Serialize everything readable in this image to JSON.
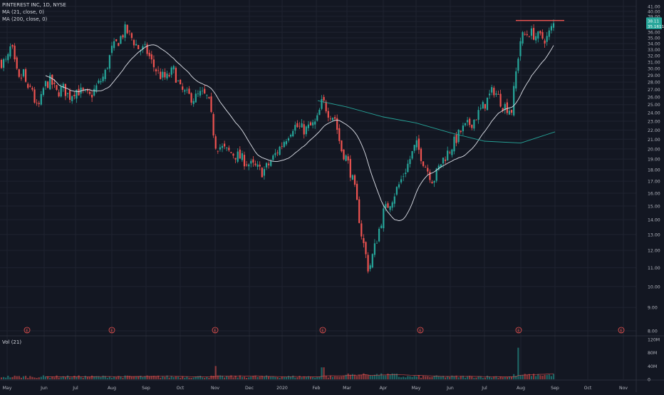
{
  "legend": {
    "title": "PINTEREST INC, 1D, NYSE",
    "ma1": "MA (21, close, 0)",
    "ma2": "MA (200, close, 0)"
  },
  "volume_pane": {
    "label": "Vol (21)"
  },
  "last_price_badges": [
    "38.11",
    "35.16116"
  ],
  "earnings_marker_label": "E",
  "colors": {
    "background": "#131722",
    "grid": "#1f2330",
    "up": "#26a69a",
    "down": "#ef5350",
    "ma21": "#e0e3eb",
    "ma200": "#26a69a",
    "resistance": "#ef5350",
    "axis_text": "#b2b5be"
  },
  "chart_data": [
    {
      "type": "candlestick",
      "title": "PINTEREST INC, 1D, NYSE",
      "x_tick_labels": [
        "May",
        "Jun",
        "Jul",
        "Aug",
        "Sep",
        "Oct",
        "Nov",
        "Dec",
        "2020",
        "Feb",
        "Mar",
        "Apr",
        "May",
        "Jun",
        "Jul",
        "Aug",
        "Sep",
        "Oct",
        "Nov"
      ],
      "y_tick_labels": [
        "41.00",
        "40.00",
        "39.00",
        "38.00",
        "37.00",
        "36.00",
        "35.00",
        "34.00",
        "33.00",
        "32.00",
        "31.00",
        "30.00",
        "29.00",
        "28.00",
        "27.00",
        "26.00",
        "25.00",
        "24.00",
        "23.00",
        "22.00",
        "21.00",
        "20.00",
        "19.00",
        "18.00",
        "17.00",
        "16.00",
        "15.00",
        "14.00",
        "13.00",
        "12.00",
        "11.00",
        "10.00",
        "9.00",
        "8.00"
      ],
      "ylim": [
        8,
        41.5
      ],
      "y_scale": "log",
      "grid": true,
      "price_path": [
        [
          "May",
          31
        ],
        [
          "May",
          33.8
        ],
        [
          "May",
          30
        ],
        [
          "May",
          28
        ],
        [
          "May",
          29.5
        ],
        [
          "May",
          26.5
        ],
        [
          "May",
          27.5
        ],
        [
          "May",
          24.5
        ],
        [
          "May",
          25
        ],
        [
          "Jun",
          27.5
        ],
        [
          "Jun",
          28.2
        ],
        [
          "Jun",
          26.5
        ],
        [
          "Jun",
          27.2
        ],
        [
          "Jun",
          26
        ],
        [
          "Jul",
          27
        ],
        [
          "Jul",
          26.5
        ],
        [
          "Jul",
          26
        ],
        [
          "Jul",
          27.5
        ],
        [
          "Jul",
          29
        ],
        [
          "Aug",
          33
        ],
        [
          "Aug",
          34.5
        ],
        [
          "Aug",
          36.5
        ],
        [
          "Aug",
          34.8
        ],
        [
          "Aug",
          33
        ],
        [
          "Sep",
          33
        ],
        [
          "Sep",
          30.5
        ],
        [
          "Sep",
          29
        ],
        [
          "Sep",
          28.5
        ],
        [
          "Sep",
          29.8
        ],
        [
          "Oct",
          27
        ],
        [
          "Oct",
          26.2
        ],
        [
          "Oct",
          25.8
        ],
        [
          "Oct",
          26.4
        ],
        [
          "Oct",
          25.8
        ],
        [
          "Nov",
          20.5
        ],
        [
          "Nov",
          19.8
        ],
        [
          "Nov",
          19.3
        ],
        [
          "Dec",
          18.5
        ],
        [
          "Dec",
          18.2
        ],
        [
          "Dec",
          17.8
        ],
        [
          "Dec",
          18.5
        ],
        [
          "Dec",
          19.5
        ],
        [
          "2020",
          20.5
        ],
        [
          "2020",
          22.5
        ],
        [
          "2020",
          22
        ],
        [
          "Feb",
          22.8
        ],
        [
          "Feb",
          25.5
        ],
        [
          "Feb",
          24
        ],
        [
          "Feb",
          23.5
        ],
        [
          "Feb",
          20
        ],
        [
          "Mar",
          19
        ],
        [
          "Mar",
          16.5
        ],
        [
          "Mar",
          13
        ],
        [
          "Mar",
          10.8
        ],
        [
          "Mar",
          12.5
        ],
        [
          "Apr",
          14.5
        ],
        [
          "Apr",
          15.5
        ],
        [
          "Apr",
          16.8
        ],
        [
          "Apr",
          18.5
        ],
        [
          "May",
          20.5
        ],
        [
          "May",
          18.5
        ],
        [
          "May",
          17
        ],
        [
          "May",
          18.8
        ],
        [
          "Jun",
          20
        ],
        [
          "Jun",
          22
        ],
        [
          "Jun",
          23
        ],
        [
          "Jul",
          25
        ],
        [
          "Jul",
          27
        ],
        [
          "Jul",
          25
        ],
        [
          "Jul",
          24.3
        ],
        [
          "Aug",
          35
        ],
        [
          "Aug",
          36
        ],
        [
          "Aug",
          35.2
        ],
        [
          "Aug",
          34.8
        ],
        [
          "Sep",
          38
        ]
      ],
      "series": [
        {
          "name": "MA (21, close, 0)",
          "color": "#e0e3eb"
        },
        {
          "name": "MA (200, close, 0)",
          "color": "#26a69a"
        }
      ],
      "ma200_path": [
        [
          "Feb",
          25.5
        ],
        [
          "Mar",
          24.7
        ],
        [
          "Apr",
          23.5
        ],
        [
          "May",
          22.8
        ],
        [
          "Jun",
          21.7
        ],
        [
          "Jul",
          20.8
        ],
        [
          "Aug",
          20.6
        ],
        [
          "Sep",
          21.8
        ]
      ],
      "resistance_level": 38.2,
      "earnings_markers": [
        "May",
        "Aug",
        "Nov",
        "Feb",
        "May",
        "Aug",
        "Nov"
      ]
    },
    {
      "type": "bar",
      "title": "Vol (21)",
      "y_tick_labels": [
        "120M",
        "80M",
        "40M",
        "0"
      ],
      "ylim": [
        0,
        120
      ],
      "spikes_M": [
        [
          "Nov",
          40
        ],
        [
          "Feb",
          36
        ],
        [
          "Aug",
          95
        ]
      ]
    }
  ]
}
